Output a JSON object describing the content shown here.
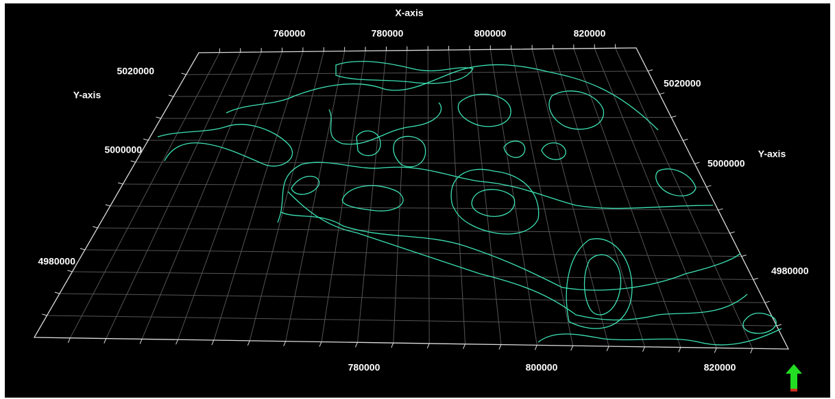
{
  "x_axis": {
    "title": "X-axis",
    "top_ticks": [
      760000,
      780000,
      800000,
      820000
    ],
    "bottom_ticks": [
      780000,
      800000,
      820000
    ]
  },
  "y_axis": {
    "left_title": "Y-axis",
    "right_title": "Y-axis",
    "left_ticks": [
      5020000,
      5000000,
      4980000
    ],
    "right_ticks": [
      5020000,
      5000000,
      4980000
    ]
  }
}
